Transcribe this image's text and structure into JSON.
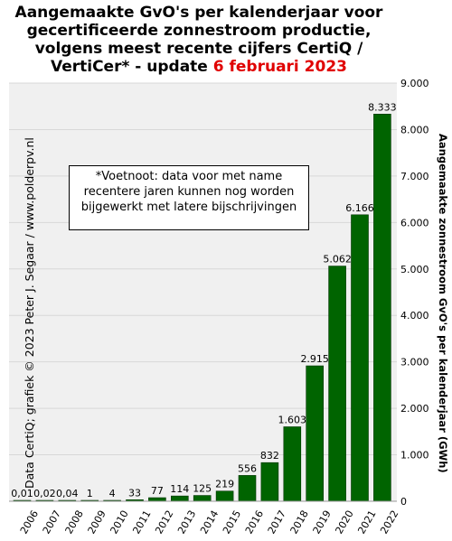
{
  "title": {
    "line1": "Aangemaakte GvO's per kalenderjaar voor",
    "line2": "gecertificeerde zonnestroom productie,",
    "line3": "volgens meest recente cijfers CertiQ /",
    "line4_prefix": "VertiCer* - update ",
    "line4_date": "6 februari 2023"
  },
  "footnote": {
    "line1": "*Voetnoot: data voor met name",
    "line2": "recentere jaren kunnen nog worden",
    "line3": "bijgewerkt met latere bijschrijvingen"
  },
  "credit": "Data CertiQ; grafiek © 2023 Peter J. Segaar / www.polderpv.nl",
  "colors": {
    "bar": "#006400",
    "bar_edge": "#003300",
    "grid": "#d8d8d8",
    "title_accent": "#e00000"
  },
  "chart_data": {
    "type": "bar",
    "categories": [
      "2006",
      "2007",
      "2008",
      "2009",
      "2010",
      "2011",
      "2012",
      "2013",
      "2014",
      "2015",
      "2016",
      "2017",
      "2018",
      "2019",
      "2020",
      "2021",
      "2022"
    ],
    "values": [
      0.01,
      0.02,
      0.04,
      1,
      4,
      33,
      77,
      114,
      125,
      219,
      556,
      832,
      1603,
      2915,
      5062,
      6166,
      8333
    ],
    "value_labels": [
      "0,01",
      "0,02",
      "0,04",
      "1",
      "4",
      "33",
      "77",
      "114",
      "125",
      "219",
      "556",
      "832",
      "1.603",
      "2.915",
      "5.062",
      "6.166",
      "8.333"
    ],
    "ylabel": "Aangemaakte zonnestroom GvO's per kalenderjaar (GWh)",
    "ylim": [
      0,
      9000
    ],
    "yticks": [
      0,
      1000,
      2000,
      3000,
      4000,
      5000,
      6000,
      7000,
      8000,
      9000
    ],
    "ytick_labels": [
      "0",
      "1.000",
      "2.000",
      "3.000",
      "4.000",
      "5.000",
      "6.000",
      "7.000",
      "8.000",
      "9.000"
    ],
    "y_axis_position": "right",
    "grid": true
  }
}
